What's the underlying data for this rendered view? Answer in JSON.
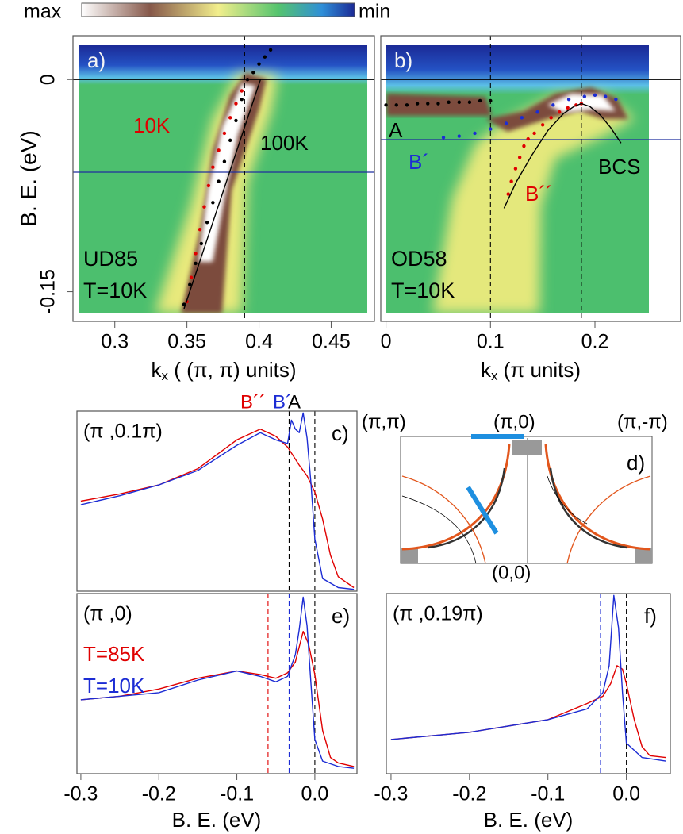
{
  "colorbar": {
    "left": "max",
    "right": "min"
  },
  "chart_data": [
    {
      "type": "line",
      "panel_label": "a)",
      "ylabel": "B. E. (eV)",
      "xlabel": [
        "k",
        "x",
        " ( (π, π) units)"
      ],
      "xlim": [
        0.271,
        0.48
      ],
      "ylim": [
        -0.171,
        0.031
      ],
      "xticks": [
        0.3,
        0.35,
        0.4,
        0.45
      ],
      "yticks": [
        0,
        -0.15
      ],
      "hlines": [
        {
          "value": 0,
          "color": "#000000"
        },
        {
          "value": -0.0655,
          "color": "#1f2f9f"
        }
      ],
      "vlines": [
        {
          "value": 0.39,
          "color": "#000000",
          "dashed": true
        }
      ],
      "series": [
        {
          "name": "10K",
          "color": "#e00000",
          "style": "dots",
          "x": [
            0.35,
            0.353,
            0.356,
            0.359,
            0.362,
            0.365,
            0.368,
            0.372,
            0.376,
            0.38,
            0.384,
            0.388,
            0.392
          ],
          "values": [
            -0.157,
            -0.14,
            -0.123,
            -0.106,
            -0.09,
            -0.075,
            -0.062,
            -0.05,
            -0.038,
            -0.027,
            -0.017,
            -0.008,
            0
          ]
        },
        {
          "name": "100K",
          "color": "#000000",
          "style": "dots",
          "x": [
            0.348,
            0.352,
            0.356,
            0.36,
            0.364,
            0.368,
            0.372,
            0.376,
            0.38,
            0.384,
            0.388,
            0.392,
            0.396,
            0.4,
            0.404,
            0.408
          ],
          "values": [
            -0.159,
            -0.145,
            -0.13,
            -0.116,
            -0.101,
            -0.087,
            -0.072,
            -0.058,
            -0.043,
            -0.029,
            -0.014,
            0,
            0.005,
            0.011,
            0.016,
            0.021
          ]
        },
        {
          "color": "#000000",
          "style": "line",
          "x": [
            0.348,
            0.401
          ],
          "values": [
            -0.162,
            0
          ]
        }
      ],
      "notes": [
        "UD85",
        "T=10K"
      ]
    },
    {
      "type": "line",
      "panel_label": "b)",
      "xlabel": [
        "k",
        "x",
        " (π units)"
      ],
      "xlim": [
        -0.005,
        0.282
      ],
      "ylim": [
        -0.171,
        0.031
      ],
      "xticks": [
        0,
        0.1,
        0.2
      ],
      "hlines": [
        {
          "value": 0,
          "color": "#000000"
        },
        {
          "value": -0.0425,
          "color": "#1f2f9f"
        }
      ],
      "vlines": [
        {
          "value": 0.1,
          "color": "#000000",
          "dashed": true
        },
        {
          "value": 0.187,
          "color": "#000000",
          "dashed": true
        }
      ],
      "series": [
        {
          "name": "A",
          "color": "#000000",
          "style": "dots",
          "x": [
            0,
            0.01,
            0.02,
            0.03,
            0.04,
            0.05,
            0.06,
            0.07,
            0.08,
            0.09,
            0.1
          ],
          "values": [
            -0.018,
            -0.018,
            -0.018,
            -0.017,
            -0.017,
            -0.017,
            -0.016,
            -0.016,
            -0.016,
            -0.015,
            -0.015
          ]
        },
        {
          "name": "B´",
          "color": "#1c2cd4",
          "style": "dots",
          "x": [
            0.055,
            0.07,
            0.085,
            0.1,
            0.115,
            0.13,
            0.145,
            0.16,
            0.175,
            0.19,
            0.2,
            0.21,
            0.22
          ],
          "values": [
            -0.041,
            -0.04,
            -0.038,
            -0.035,
            -0.031,
            -0.027,
            -0.023,
            -0.018,
            -0.014,
            -0.012,
            -0.011,
            -0.012,
            -0.014
          ]
        },
        {
          "name": "B´´",
          "color": "#e00000",
          "style": "dots",
          "x": [
            0.117,
            0.12,
            0.124,
            0.128,
            0.132,
            0.136,
            0.142,
            0.15,
            0.158,
            0.166,
            0.174,
            0.182,
            0.187
          ],
          "values": [
            -0.081,
            -0.072,
            -0.063,
            -0.055,
            -0.047,
            -0.042,
            -0.038,
            -0.032,
            -0.027,
            -0.023,
            -0.02,
            -0.018,
            -0.017
          ]
        },
        {
          "name": "BCS",
          "color": "#000000",
          "style": "line",
          "x": [
            0.113,
            0.125,
            0.14,
            0.155,
            0.17,
            0.18,
            0.187,
            0.195,
            0.205,
            0.215,
            0.225
          ],
          "values": [
            -0.091,
            -0.072,
            -0.053,
            -0.036,
            -0.024,
            -0.019,
            -0.017,
            -0.019,
            -0.025,
            -0.034,
            -0.045
          ]
        }
      ],
      "notes": [
        "OD58",
        "T=10K"
      ]
    },
    {
      "type": "line",
      "panel_label": "c)",
      "title": "(π ,0.1π)",
      "xlim": [
        -0.305,
        0.054
      ],
      "ylim": [
        0,
        1
      ],
      "vlines": [
        {
          "value": -0.033,
          "color": "#000000",
          "dashed": true
        },
        {
          "value": 0,
          "color": "#000000",
          "dashed": true
        }
      ],
      "markers": [
        {
          "text": "B´´",
          "color": "#e00000"
        },
        {
          "text": "B´",
          "color": "#1c2cd4"
        },
        {
          "text": "A",
          "color": "#000000"
        }
      ],
      "series": [
        {
          "color": "#e00000",
          "style": "line",
          "x": [
            -0.3,
            -0.25,
            -0.2,
            -0.15,
            -0.1,
            -0.07,
            -0.05,
            -0.035,
            -0.02,
            -0.01,
            0,
            0.01,
            0.02,
            0.03,
            0.05
          ],
          "values": [
            0.5,
            0.54,
            0.59,
            0.68,
            0.84,
            0.9,
            0.86,
            0.8,
            0.7,
            0.64,
            0.55,
            0.4,
            0.2,
            0.08,
            0.02
          ]
        },
        {
          "color": "#1c2cd4",
          "style": "line",
          "x": [
            -0.3,
            -0.25,
            -0.2,
            -0.15,
            -0.1,
            -0.07,
            -0.05,
            -0.035,
            -0.03,
            -0.025,
            -0.02,
            -0.015,
            -0.01,
            -0.005,
            0,
            0.01,
            0.03,
            0.05
          ],
          "values": [
            0.48,
            0.53,
            0.59,
            0.67,
            0.81,
            0.88,
            0.84,
            0.82,
            0.95,
            0.9,
            0.88,
            0.99,
            0.85,
            0.6,
            0.29,
            0.07,
            0.02,
            0.01
          ]
        }
      ]
    },
    {
      "type": "line",
      "panel_label": "e)",
      "title": "(π ,0)",
      "xlabel": [
        "B. E. (eV)"
      ],
      "xlim": [
        -0.305,
        0.054
      ],
      "ylim": [
        0,
        1
      ],
      "xticks": [
        -0.3,
        -0.2,
        -0.1,
        {
          "value": 0,
          "label": "0.0"
        }
      ],
      "vlines": [
        {
          "value": -0.06,
          "color": "#e00000",
          "dashed": true
        },
        {
          "value": -0.033,
          "color": "#1c2cd4",
          "dashed": true
        },
        {
          "value": 0,
          "color": "#000000",
          "dashed": true
        }
      ],
      "series": [
        {
          "name": "T=85K",
          "color": "#e00000",
          "style": "line",
          "x": [
            -0.3,
            -0.25,
            -0.2,
            -0.15,
            -0.1,
            -0.07,
            -0.05,
            -0.035,
            -0.025,
            -0.015,
            -0.008,
            0,
            0.01,
            0.02,
            0.03,
            0.05
          ],
          "values": [
            0.41,
            0.43,
            0.47,
            0.53,
            0.57,
            0.55,
            0.53,
            0.56,
            0.62,
            0.79,
            0.72,
            0.55,
            0.24,
            0.09,
            0.06,
            0.04
          ]
        },
        {
          "name": "T=10K",
          "color": "#1c2cd4",
          "style": "line",
          "x": [
            -0.3,
            -0.25,
            -0.2,
            -0.15,
            -0.1,
            -0.07,
            -0.05,
            -0.035,
            -0.025,
            -0.02,
            -0.015,
            -0.01,
            -0.005,
            0,
            0.01,
            0.03,
            0.05
          ],
          "values": [
            0.41,
            0.43,
            0.45,
            0.52,
            0.57,
            0.54,
            0.51,
            0.54,
            0.66,
            0.8,
            0.98,
            0.82,
            0.5,
            0.19,
            0.07,
            0.04,
            0.03
          ]
        }
      ]
    },
    {
      "type": "line",
      "panel_label": "f)",
      "title": "(π ,0.19π)",
      "xlabel": [
        "B. E. (eV)"
      ],
      "xlim": [
        -0.306,
        0.056
      ],
      "ylim": [
        0,
        1
      ],
      "xticks": [
        -0.3,
        -0.2,
        -0.1,
        {
          "value": 0,
          "label": "0.0"
        }
      ],
      "vlines": [
        {
          "value": -0.033,
          "color": "#1c2cd4",
          "dashed": true
        },
        {
          "value": 0,
          "color": "#000000",
          "dashed": true
        }
      ],
      "series": [
        {
          "color": "#e00000",
          "style": "line",
          "x": [
            -0.3,
            -0.2,
            -0.1,
            -0.05,
            -0.03,
            -0.02,
            -0.012,
            -0.005,
            0,
            0.01,
            0.02,
            0.03,
            0.05
          ],
          "values": [
            0.19,
            0.23,
            0.3,
            0.39,
            0.43,
            0.5,
            0.6,
            0.58,
            0.5,
            0.3,
            0.15,
            0.1,
            0.09
          ]
        },
        {
          "color": "#1c2cd4",
          "style": "line",
          "x": [
            -0.3,
            -0.2,
            -0.1,
            -0.05,
            -0.03,
            -0.022,
            -0.016,
            -0.01,
            -0.005,
            0,
            0.02,
            0.05
          ],
          "values": [
            0.19,
            0.23,
            0.3,
            0.36,
            0.45,
            0.6,
            0.99,
            0.81,
            0.45,
            0.17,
            0.09,
            0.07
          ]
        }
      ]
    }
  ],
  "diagram": {
    "panel_label": "d)",
    "corner_labels": [
      "(π,π)",
      "(π,0)",
      "(π,-π)",
      "(0,0)"
    ]
  }
}
